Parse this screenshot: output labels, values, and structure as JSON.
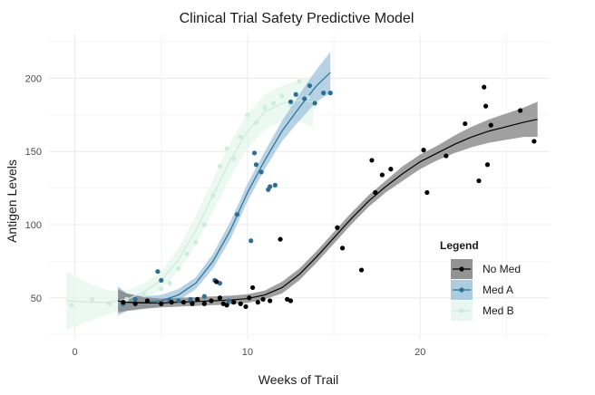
{
  "chart_data": {
    "type": "scatter",
    "title": "Clinical Trial Safety Predictive Model",
    "xlabel": "Weeks of Trail",
    "ylabel": "Antigen Levels",
    "xlim": [
      -1.5,
      27.5
    ],
    "ylim": [
      22,
      230
    ],
    "x_ticks": [
      0,
      10,
      20
    ],
    "y_ticks": [
      50,
      100,
      150,
      200
    ],
    "grid": true,
    "legend": {
      "title": "Legend",
      "placement": "right"
    },
    "series": [
      {
        "name": "No Med",
        "color": "#000000",
        "band_color": "#808080",
        "points": [
          [
            2.8,
            47
          ],
          [
            3.5,
            46
          ],
          [
            4.2,
            48
          ],
          [
            5.0,
            46
          ],
          [
            5.6,
            47
          ],
          [
            6.3,
            47
          ],
          [
            6.8,
            46
          ],
          [
            7.1,
            49
          ],
          [
            7.5,
            46
          ],
          [
            7.9,
            48
          ],
          [
            8.2,
            61
          ],
          [
            8.4,
            50
          ],
          [
            8.6,
            46
          ],
          [
            8.8,
            45
          ],
          [
            9.2,
            47
          ],
          [
            9.6,
            46
          ],
          [
            9.9,
            44
          ],
          [
            10.1,
            50
          ],
          [
            10.3,
            57
          ],
          [
            10.6,
            47
          ],
          [
            10.9,
            49
          ],
          [
            11.3,
            48
          ],
          [
            11.9,
            90
          ],
          [
            12.3,
            49
          ],
          [
            12.5,
            48
          ],
          [
            15.2,
            98
          ],
          [
            15.5,
            84
          ],
          [
            16.6,
            69
          ],
          [
            17.2,
            144
          ],
          [
            17.4,
            122
          ],
          [
            17.8,
            134
          ],
          [
            18.3,
            138
          ],
          [
            20.2,
            151
          ],
          [
            20.4,
            122
          ],
          [
            21.5,
            147
          ],
          [
            22.6,
            169
          ],
          [
            23.4,
            130
          ],
          [
            23.7,
            194
          ],
          [
            23.8,
            181
          ],
          [
            23.9,
            141
          ],
          [
            24.1,
            168
          ],
          [
            25.8,
            178
          ],
          [
            26.6,
            157
          ]
        ],
        "fit_x": [
          2.5,
          3,
          4,
          5,
          6,
          7,
          8,
          9,
          10,
          11,
          12,
          13,
          14,
          15,
          16,
          17,
          18,
          19,
          20,
          21,
          22,
          23,
          24,
          25,
          26,
          26.8
        ],
        "fit_y": [
          48,
          47,
          46.5,
          46.5,
          47,
          47.5,
          48,
          48.5,
          49.5,
          52,
          57,
          66,
          78,
          91,
          104,
          116,
          126,
          135,
          143,
          149,
          155,
          160,
          164,
          167,
          170,
          172
        ],
        "band_halfwidth": [
          8,
          6,
          4,
          3,
          3,
          3,
          3,
          3,
          3,
          3,
          4,
          4,
          4,
          4,
          4,
          4,
          4,
          5,
          5,
          5,
          6,
          7,
          8,
          9,
          10,
          12
        ]
      },
      {
        "name": "Med A",
        "color": "#2b6f96",
        "band_color": "#9ec3db",
        "points": [
          [
            2.8,
            46
          ],
          [
            3.5,
            49
          ],
          [
            4.8,
            68
          ],
          [
            5.0,
            62
          ],
          [
            5.5,
            48
          ],
          [
            6.0,
            48
          ],
          [
            6.7,
            49
          ],
          [
            7.5,
            51
          ],
          [
            8.1,
            62
          ],
          [
            8.4,
            60
          ],
          [
            8.9,
            48
          ],
          [
            9.4,
            107
          ],
          [
            10.2,
            89
          ],
          [
            10.4,
            149
          ],
          [
            10.5,
            141
          ],
          [
            10.8,
            136
          ],
          [
            11.2,
            124
          ],
          [
            11.3,
            126
          ],
          [
            11.6,
            127
          ],
          [
            12.5,
            184
          ],
          [
            12.8,
            189
          ],
          [
            13.3,
            186
          ],
          [
            13.6,
            195
          ],
          [
            13.9,
            183
          ],
          [
            14.4,
            190
          ],
          [
            14.8,
            190
          ]
        ],
        "fit_x": [
          2.5,
          3,
          4,
          5,
          6,
          7,
          8,
          9,
          10,
          11,
          12,
          13,
          14,
          14.8
        ],
        "fit_y": [
          48,
          47,
          47,
          48,
          52,
          60,
          75,
          96,
          122,
          144,
          164,
          180,
          195,
          204
        ],
        "band_halfwidth": [
          10,
          6,
          4,
          4,
          4,
          4,
          5,
          6,
          6,
          6,
          7,
          9,
          11,
          14
        ]
      },
      {
        "name": "Med B",
        "color": "#ccebdc",
        "band_color": "#e6f5ee",
        "points": [
          [
            -0.2,
            45
          ],
          [
            1.0,
            49
          ],
          [
            2.0,
            46
          ],
          [
            3.0,
            49
          ],
          [
            4.0,
            52
          ],
          [
            5.0,
            56
          ],
          [
            5.5,
            60
          ],
          [
            6.0,
            70
          ],
          [
            6.5,
            80
          ],
          [
            7.0,
            88
          ],
          [
            7.5,
            100
          ],
          [
            8.0,
            120
          ],
          [
            8.4,
            140
          ],
          [
            8.8,
            152
          ],
          [
            9.2,
            145
          ],
          [
            9.6,
            160
          ],
          [
            10.0,
            175
          ],
          [
            10.5,
            170
          ],
          [
            11.0,
            180
          ],
          [
            11.5,
            183
          ],
          [
            12.0,
            188
          ],
          [
            12.5,
            182
          ],
          [
            13.0,
            198
          ],
          [
            13.5,
            187
          ]
        ],
        "fit_x": [
          -0.5,
          1,
          2,
          3,
          4,
          5,
          6,
          7,
          8,
          9,
          10,
          11,
          12,
          13,
          13.8
        ],
        "fit_y": [
          48,
          47,
          47,
          49,
          54,
          62,
          76,
          96,
          120,
          144,
          164,
          177,
          183,
          185,
          184
        ],
        "band_halfwidth": [
          20,
          12,
          8,
          6,
          6,
          6,
          8,
          10,
          11,
          12,
          12,
          12,
          12,
          14,
          18
        ]
      }
    ]
  }
}
